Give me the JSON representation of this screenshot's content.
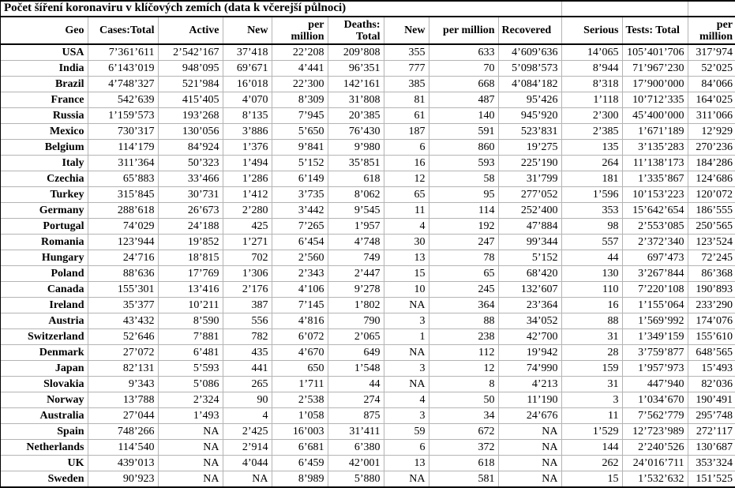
{
  "title": "Počet šíření koronaviru v klíčových zemích (data k včerejší půlnoci)",
  "table": {
    "columns": [
      "Geo",
      "Cases:Total",
      "Active",
      "New",
      "per million",
      "Deaths: Total",
      "New",
      "per million",
      "Recovered",
      "Serious",
      "Tests: Total",
      "per million"
    ],
    "na_label": "NA",
    "rows": [
      [
        "USA",
        "7’361’611",
        "2’542’167",
        "37’418",
        "22’208",
        "209’808",
        "355",
        "633",
        "4’609’636",
        "14’065",
        "105’401’706",
        "317’974"
      ],
      [
        "India",
        "6’143’019",
        "948’095",
        "69’671",
        "4’441",
        "96’351",
        "777",
        "70",
        "5’098’573",
        "8’944",
        "71’967’230",
        "52’025"
      ],
      [
        "Brazil",
        "4’748’327",
        "521’984",
        "16’018",
        "22’300",
        "142’161",
        "385",
        "668",
        "4’084’182",
        "8’318",
        "17’900’000",
        "84’066"
      ],
      [
        "France",
        "542’639",
        "415’405",
        "4’070",
        "8’309",
        "31’808",
        "81",
        "487",
        "95’426",
        "1’118",
        "10’712’335",
        "164’025"
      ],
      [
        "Russia",
        "1’159’573",
        "193’268",
        "8’135",
        "7’945",
        "20’385",
        "61",
        "140",
        "945’920",
        "2’300",
        "45’400’000",
        "311’066"
      ],
      [
        "Mexico",
        "730’317",
        "130’056",
        "3’886",
        "5’650",
        "76’430",
        "187",
        "591",
        "523’831",
        "2’385",
        "1’671’189",
        "12’929"
      ],
      [
        "Belgium",
        "114’179",
        "84’924",
        "1’376",
        "9’841",
        "9’980",
        "6",
        "860",
        "19’275",
        "135",
        "3’135’283",
        "270’236"
      ],
      [
        "Italy",
        "311’364",
        "50’323",
        "1’494",
        "5’152",
        "35’851",
        "16",
        "593",
        "225’190",
        "264",
        "11’138’173",
        "184’286"
      ],
      [
        "Czechia",
        "65’883",
        "33’466",
        "1’286",
        "6’149",
        "618",
        "12",
        "58",
        "31’799",
        "181",
        "1’335’867",
        "124’686"
      ],
      [
        "Turkey",
        "315’845",
        "30’731",
        "1’412",
        "3’735",
        "8’062",
        "65",
        "95",
        "277’052",
        "1’596",
        "10’153’223",
        "120’072"
      ],
      [
        "Germany",
        "288’618",
        "26’673",
        "2’280",
        "3’442",
        "9’545",
        "11",
        "114",
        "252’400",
        "353",
        "15’642’654",
        "186’555"
      ],
      [
        "Portugal",
        "74’029",
        "24’188",
        "425",
        "7’265",
        "1’957",
        "4",
        "192",
        "47’884",
        "98",
        "2’553’085",
        "250’565"
      ],
      [
        "Romania",
        "123’944",
        "19’852",
        "1’271",
        "6’454",
        "4’748",
        "30",
        "247",
        "99’344",
        "557",
        "2’372’340",
        "123’524"
      ],
      [
        "Hungary",
        "24’716",
        "18’815",
        "702",
        "2’560",
        "749",
        "13",
        "78",
        "5’152",
        "44",
        "697’473",
        "72’245"
      ],
      [
        "Poland",
        "88’636",
        "17’769",
        "1’306",
        "2’343",
        "2’447",
        "15",
        "65",
        "68’420",
        "130",
        "3’267’844",
        "86’368"
      ],
      [
        "Canada",
        "155’301",
        "13’416",
        "2’176",
        "4’106",
        "9’278",
        "10",
        "245",
        "132’607",
        "110",
        "7’220’108",
        "190’893"
      ],
      [
        "Ireland",
        "35’377",
        "10’211",
        "387",
        "7’145",
        "1’802",
        "NA",
        "364",
        "23’364",
        "16",
        "1’155’064",
        "233’290"
      ],
      [
        "Austria",
        "43’432",
        "8’590",
        "556",
        "4’816",
        "790",
        "3",
        "88",
        "34’052",
        "88",
        "1’569’992",
        "174’076"
      ],
      [
        "Switzerland",
        "52’646",
        "7’881",
        "782",
        "6’072",
        "2’065",
        "1",
        "238",
        "42’700",
        "31",
        "1’349’159",
        "155’610"
      ],
      [
        "Denmark",
        "27’072",
        "6’481",
        "435",
        "4’670",
        "649",
        "NA",
        "112",
        "19’942",
        "28",
        "3’759’877",
        "648’565"
      ],
      [
        "Japan",
        "82’131",
        "5’593",
        "441",
        "650",
        "1’548",
        "3",
        "12",
        "74’990",
        "159",
        "1’957’973",
        "15’493"
      ],
      [
        "Slovakia",
        "9’343",
        "5’086",
        "265",
        "1’711",
        "44",
        "NA",
        "8",
        "4’213",
        "31",
        "447’940",
        "82’036"
      ],
      [
        "Norway",
        "13’788",
        "2’324",
        "90",
        "2’538",
        "274",
        "4",
        "50",
        "11’190",
        "3",
        "1’034’670",
        "190’491"
      ],
      [
        "Australia",
        "27’044",
        "1’493",
        "4",
        "1’058",
        "875",
        "3",
        "34",
        "24’676",
        "11",
        "7’562’779",
        "295’748"
      ],
      [
        "Spain",
        "748’266",
        "NA",
        "2’425",
        "16’003",
        "31’411",
        "59",
        "672",
        "NA",
        "1’529",
        "12’723’989",
        "272’117"
      ],
      [
        "Netherlands",
        "114’540",
        "NA",
        "2’914",
        "6’681",
        "6’380",
        "6",
        "372",
        "NA",
        "144",
        "2’240’526",
        "130’687"
      ],
      [
        "UK",
        "439’013",
        "NA",
        "4’044",
        "6’459",
        "42’001",
        "13",
        "618",
        "NA",
        "262",
        "24’016’711",
        "353’324"
      ],
      [
        "Sweden",
        "90’923",
        "NA",
        "NA",
        "8’989",
        "5’880",
        "NA",
        "581",
        "NA",
        "15",
        "1’532’632",
        "151’525"
      ]
    ]
  },
  "colors": {
    "gridline": "#b4b4b4",
    "rule": "#000000",
    "background": "#ffffff",
    "text": "#000000"
  }
}
